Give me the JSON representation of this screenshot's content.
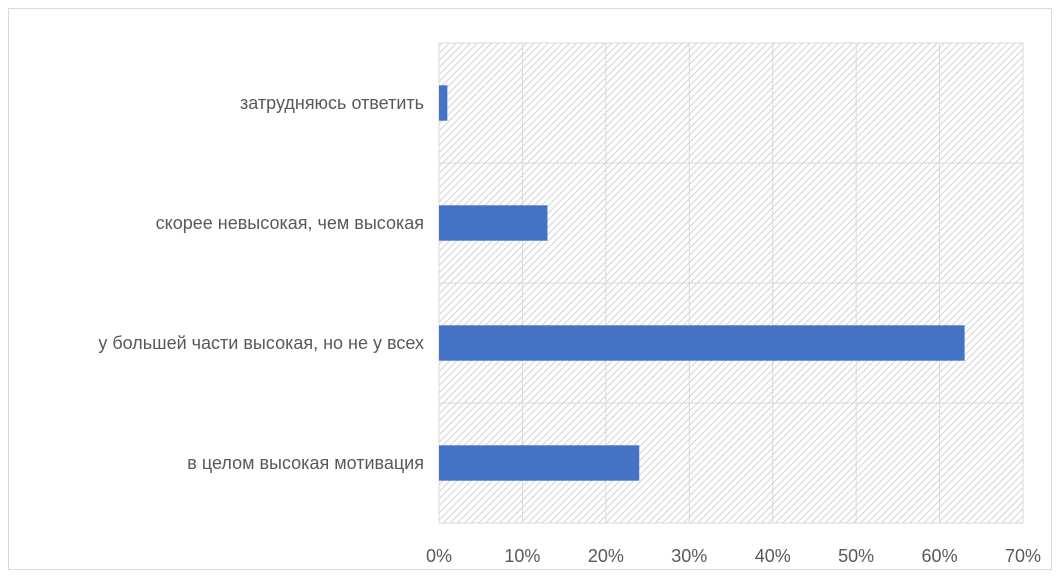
{
  "chart_data": {
    "type": "bar",
    "orientation": "horizontal",
    "categories": [
      "затрудняюсь ответить",
      "скорее невысокая, чем высокая",
      "у большей части высокая, но не у всех",
      "в целом высокая мотивация"
    ],
    "values": [
      1,
      13,
      63,
      24
    ],
    "unit": "%",
    "xlim": [
      0,
      70
    ],
    "x_ticks": [
      "0%",
      "10%",
      "20%",
      "30%",
      "40%",
      "50%",
      "60%",
      "70%"
    ],
    "title": "",
    "xlabel": "",
    "ylabel": "",
    "grid": true,
    "plot_fill": "diagonal-hatch",
    "legend": "none",
    "bar_color": "#4472c4"
  }
}
